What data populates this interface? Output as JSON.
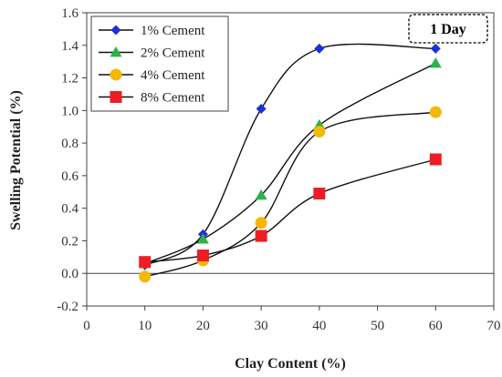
{
  "chart_data": {
    "type": "line",
    "annotation": "1 Day",
    "xlabel": "Clay Content (%)",
    "ylabel": "Swelling Potential (%)",
    "xlim": [
      0,
      70
    ],
    "ylim": [
      -0.2,
      1.6
    ],
    "xticks": [
      "0",
      "10",
      "20",
      "30",
      "40",
      "50",
      "60",
      "70"
    ],
    "yticks": [
      "-0.2",
      "0.0",
      "0.2",
      "0.4",
      "0.6",
      "0.8",
      "1.0",
      "1.2",
      "1.4",
      "1.6"
    ],
    "grid": false,
    "legend_position": "top-left",
    "series": [
      {
        "name": "1% Cement",
        "marker": "diamond",
        "color": "#1e2fd8",
        "x": [
          10,
          20,
          30,
          40,
          60
        ],
        "y": [
          0.05,
          0.24,
          1.01,
          1.38,
          1.38
        ]
      },
      {
        "name": "2% Cement",
        "marker": "triangle",
        "color": "#2db24a",
        "x": [
          10,
          20,
          30,
          40,
          60
        ],
        "y": [
          0.06,
          0.21,
          0.48,
          0.91,
          1.29
        ]
      },
      {
        "name": "4% Cement",
        "marker": "circle",
        "color": "#f5b800",
        "x": [
          10,
          20,
          30,
          40,
          60
        ],
        "y": [
          -0.02,
          0.08,
          0.31,
          0.87,
          0.99
        ]
      },
      {
        "name": "8% Cement",
        "marker": "square",
        "color": "#ee1c24",
        "x": [
          10,
          20,
          30,
          40,
          60
        ],
        "y": [
          0.07,
          0.11,
          0.23,
          0.49,
          0.7
        ]
      }
    ]
  }
}
